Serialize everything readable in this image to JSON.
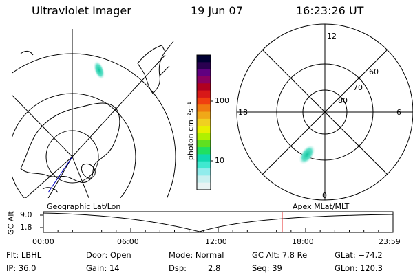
{
  "header": {
    "title": "Ultraviolet Imager",
    "date": "19 Jun 07",
    "time": "16:23:26 UT"
  },
  "colorbar": {
    "unit_label": "photon cm⁻²s⁻¹",
    "ticks": [
      "100",
      "10"
    ],
    "colors": [
      "#000033",
      "#2a0050",
      "#600080",
      "#8a0060",
      "#b00020",
      "#d81818",
      "#f04010",
      "#f07a10",
      "#f0a818",
      "#f0d020",
      "#e8f000",
      "#b0f000",
      "#60e020",
      "#20e060",
      "#10d8b0",
      "#40e8d0",
      "#90ecec",
      "#c8f0f0",
      "#e8f4f4"
    ]
  },
  "polar_plot": {
    "mlt_labels": {
      "top": "12",
      "left": "18",
      "right": "6",
      "bottom": "0"
    },
    "lat_labels": [
      "60",
      "70",
      "80"
    ]
  },
  "timeline": {
    "ylabel": "GC Alt",
    "yticks": [
      "9.0",
      "1.8"
    ],
    "left_title": "Geographic Lat/Lon",
    "right_title": "Apex MLat/MLT",
    "xticks": [
      "00:00",
      "06:00",
      "12:00",
      "18:00",
      "23:59"
    ],
    "current_time_hours": 16.39
  },
  "info": {
    "flt": "Flt: LBHL",
    "ip": "IP: 36.0",
    "door": "Door: Open",
    "gain": "Gain: 14",
    "mode": "Mode: Normal",
    "dsp_label": "Dsp:",
    "dsp_value": "2.8",
    "gc_alt": "GC Alt: 7.8 Re",
    "seq": "Seq: 39",
    "glat": "GLat: −74.2",
    "glon": "GLon: 120.3"
  }
}
